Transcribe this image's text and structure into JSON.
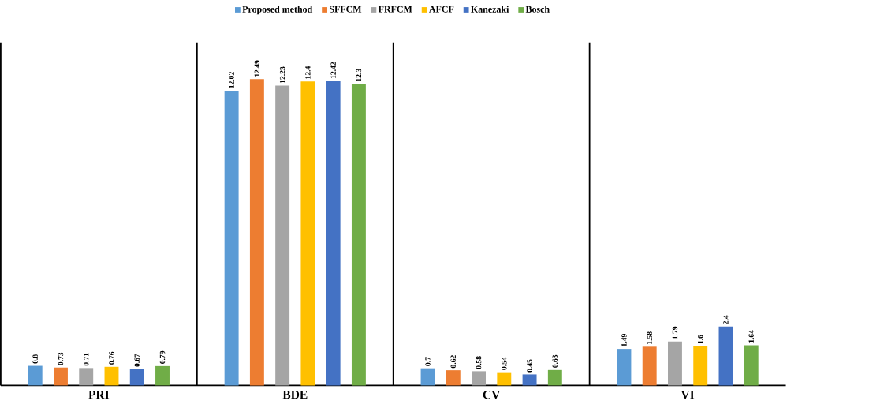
{
  "chart_data": {
    "type": "bar",
    "categories": [
      "PRI",
      "BDE",
      "CV",
      "VI"
    ],
    "series": [
      {
        "name": "Proposed method",
        "color": "#5b9bd5",
        "values": [
          0.8,
          12.02,
          0.7,
          1.49
        ]
      },
      {
        "name": "SFFCM",
        "color": "#ed7d31",
        "values": [
          0.73,
          12.49,
          0.62,
          1.58
        ]
      },
      {
        "name": "FRFCM",
        "color": "#a5a5a5",
        "values": [
          0.71,
          12.23,
          0.58,
          1.79
        ]
      },
      {
        "name": "AFCF",
        "color": "#ffc000",
        "values": [
          0.76,
          12.4,
          0.54,
          1.6
        ]
      },
      {
        "name": "Kanezaki",
        "color": "#4472c4",
        "values": [
          0.67,
          12.42,
          0.45,
          2.4
        ]
      },
      {
        "name": "Bosch",
        "color": "#70ad47",
        "values": [
          0.79,
          12.3,
          0.63,
          1.64
        ]
      }
    ],
    "data_labels": true,
    "legend": "top",
    "grid": false
  }
}
